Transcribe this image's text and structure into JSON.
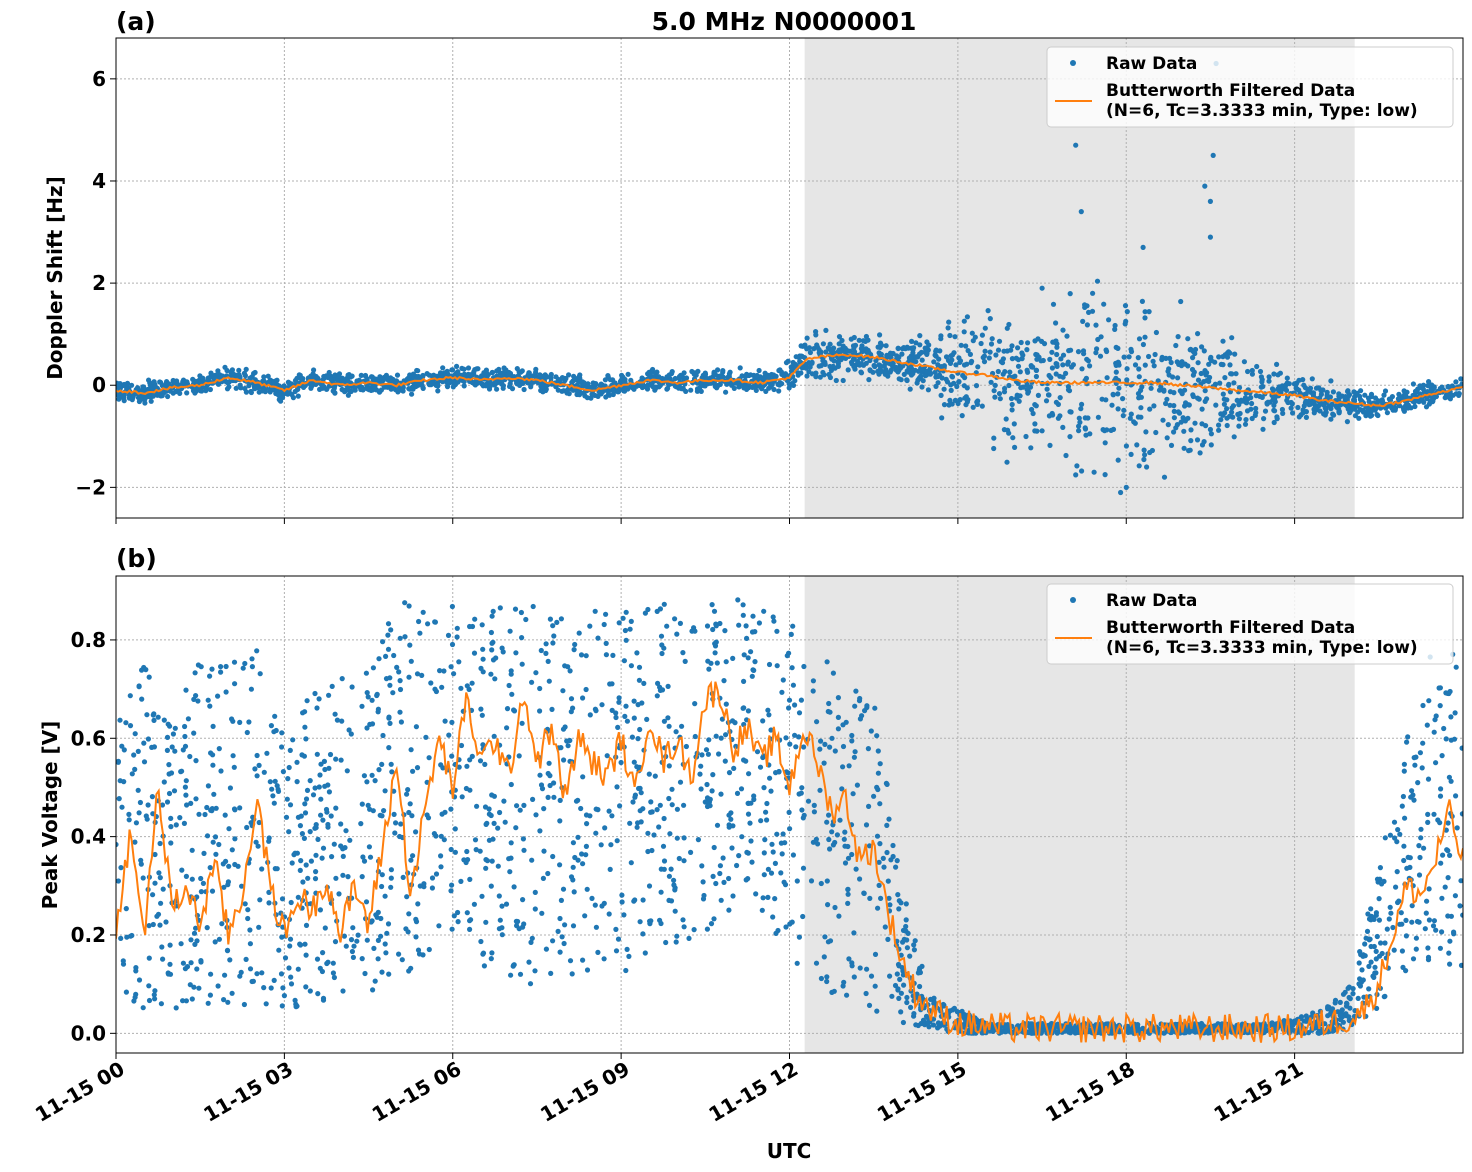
{
  "figure": {
    "title": "5.0 MHz N0000001",
    "xlabel": "UTC",
    "shade_color": "#e6e6e6",
    "raw_color": "#1f77b4",
    "filtered_color": "#ff7f0e",
    "grid_color": "#b0b0b0"
  },
  "chart_data": [
    {
      "type": "scatter",
      "panel_label": "(a)",
      "title": "5.0 MHz N0000001",
      "xlabel": "",
      "ylabel": "Doppler Shift [Hz]",
      "xlim_hours": [
        0,
        24
      ],
      "ylim": [
        -2.6,
        6.8
      ],
      "yticks": [
        -2,
        0,
        2,
        4,
        6
      ],
      "ytick_labels": [
        "−2",
        "0",
        "2",
        "4",
        "6"
      ],
      "xticks_hours": [
        0,
        3,
        6,
        9,
        12,
        15,
        18,
        21
      ],
      "grid": true,
      "legend_position": "top-right",
      "shaded_interval_hours": [
        12.27,
        22.07
      ],
      "series": [
        {
          "name": "Raw Data",
          "kind": "points",
          "x_hours": [
            0.0,
            0.5,
            1.0,
            1.5,
            2.0,
            2.5,
            3.0,
            3.5,
            4.0,
            4.5,
            5.0,
            5.5,
            6.0,
            6.5,
            7.0,
            7.5,
            8.0,
            8.5,
            9.0,
            9.5,
            10.0,
            10.5,
            11.0,
            11.5,
            12.0,
            12.3,
            12.5,
            13.0,
            13.5,
            14.0,
            14.5,
            15.0,
            15.5,
            16.0,
            16.5,
            17.0,
            17.5,
            18.0,
            18.5,
            19.0,
            19.5,
            20.0,
            20.5,
            21.0,
            21.5,
            22.0,
            22.5,
            23.0,
            23.5,
            24.0
          ],
          "y_center": [
            -0.1,
            -0.15,
            -0.05,
            0.0,
            0.15,
            0.05,
            -0.1,
            0.1,
            0.0,
            0.05,
            0.0,
            0.1,
            0.15,
            0.1,
            0.15,
            0.1,
            0.0,
            -0.1,
            0.0,
            0.1,
            0.05,
            0.1,
            0.1,
            0.05,
            0.15,
            0.5,
            0.55,
            0.6,
            0.55,
            0.45,
            0.35,
            0.25,
            0.2,
            0.1,
            0.05,
            0.05,
            0.05,
            0.05,
            0.05,
            0.0,
            -0.05,
            -0.1,
            -0.15,
            -0.2,
            -0.3,
            -0.35,
            -0.4,
            -0.3,
            -0.15,
            -0.05
          ],
          "y_spread": [
            0.15,
            0.15,
            0.15,
            0.15,
            0.15,
            0.15,
            0.15,
            0.15,
            0.15,
            0.15,
            0.15,
            0.15,
            0.15,
            0.15,
            0.15,
            0.15,
            0.15,
            0.15,
            0.15,
            0.15,
            0.15,
            0.15,
            0.15,
            0.15,
            0.2,
            0.35,
            0.3,
            0.3,
            0.3,
            0.3,
            0.45,
            0.7,
            0.9,
            1.0,
            1.1,
            1.2,
            1.3,
            1.3,
            1.2,
            1.1,
            0.9,
            0.6,
            0.4,
            0.3,
            0.25,
            0.25,
            0.2,
            0.2,
            0.15,
            0.15
          ],
          "outliers": [
            [
              17.1,
              4.7
            ],
            [
              17.2,
              3.4
            ],
            [
              18.3,
              2.7
            ],
            [
              19.4,
              3.9
            ],
            [
              19.5,
              3.6
            ],
            [
              19.55,
              4.5
            ],
            [
              19.6,
              6.3
            ],
            [
              19.5,
              2.9
            ],
            [
              17.4,
              1.8
            ],
            [
              16.5,
              1.9
            ],
            [
              17.9,
              -2.1
            ],
            [
              18.0,
              -2.0
            ]
          ]
        },
        {
          "name": "Butterworth Filtered Data\n(N=6, Tc=3.3333 min, Type: low)",
          "kind": "line",
          "x_hours": [
            0.0,
            0.5,
            1.0,
            1.5,
            2.0,
            2.5,
            3.0,
            3.5,
            4.0,
            4.5,
            5.0,
            5.5,
            6.0,
            6.5,
            7.0,
            7.5,
            8.0,
            8.5,
            9.0,
            9.5,
            10.0,
            10.5,
            11.0,
            11.5,
            12.0,
            12.3,
            12.5,
            13.0,
            13.5,
            14.0,
            14.5,
            15.0,
            15.5,
            16.0,
            16.5,
            17.0,
            17.5,
            18.0,
            18.5,
            19.0,
            19.5,
            20.0,
            20.5,
            21.0,
            21.5,
            22.0,
            22.5,
            23.0,
            23.5,
            24.0
          ],
          "y": [
            -0.1,
            -0.15,
            -0.05,
            0.0,
            0.15,
            0.05,
            -0.1,
            0.1,
            0.0,
            0.05,
            0.0,
            0.1,
            0.15,
            0.1,
            0.15,
            0.1,
            0.0,
            -0.1,
            0.0,
            0.1,
            0.05,
            0.1,
            0.1,
            0.05,
            0.15,
            0.5,
            0.55,
            0.6,
            0.55,
            0.45,
            0.35,
            0.25,
            0.2,
            0.1,
            0.05,
            0.05,
            0.05,
            0.05,
            0.05,
            0.0,
            -0.05,
            -0.1,
            -0.15,
            -0.2,
            -0.3,
            -0.35,
            -0.4,
            -0.3,
            -0.15,
            -0.05
          ]
        }
      ]
    },
    {
      "type": "scatter",
      "panel_label": "(b)",
      "title": "",
      "xlabel": "UTC",
      "ylabel": "Peak Voltage [V]",
      "xlim_hours": [
        0,
        24
      ],
      "ylim": [
        -0.04,
        0.93
      ],
      "yticks": [
        0.0,
        0.2,
        0.4,
        0.6,
        0.8
      ],
      "ytick_labels": [
        "0.0",
        "0.2",
        "0.4",
        "0.6",
        "0.8"
      ],
      "xticks_hours": [
        0,
        3,
        6,
        9,
        12,
        15,
        18,
        21
      ],
      "xtick_labels": [
        "11-15 00",
        "11-15 03",
        "11-15 06",
        "11-15 09",
        "11-15 12",
        "11-15 15",
        "11-15 18",
        "11-15 21"
      ],
      "grid": true,
      "legend_position": "top-right",
      "shaded_interval_hours": [
        12.27,
        22.07
      ],
      "series": [
        {
          "name": "Raw Data",
          "kind": "points",
          "x_hours": [
            0.0,
            0.5,
            1.0,
            1.5,
            2.0,
            2.5,
            3.0,
            3.5,
            4.0,
            4.5,
            5.0,
            5.5,
            6.0,
            6.5,
            7.0,
            7.5,
            8.0,
            8.5,
            9.0,
            9.5,
            10.0,
            10.5,
            11.0,
            11.5,
            12.0,
            12.5,
            13.0,
            13.5,
            14.0,
            14.5,
            15.0,
            15.5,
            16.0,
            16.5,
            17.0,
            17.5,
            18.0,
            18.5,
            19.0,
            19.5,
            20.0,
            20.5,
            21.0,
            21.5,
            22.0,
            22.5,
            23.0,
            23.5,
            24.0
          ],
          "y_low": [
            0.06,
            0.05,
            0.05,
            0.06,
            0.06,
            0.05,
            0.05,
            0.06,
            0.06,
            0.08,
            0.1,
            0.15,
            0.18,
            0.12,
            0.1,
            0.1,
            0.1,
            0.12,
            0.12,
            0.12,
            0.15,
            0.2,
            0.25,
            0.25,
            0.15,
            0.08,
            0.06,
            0.04,
            0.02,
            0.01,
            0.0,
            0.0,
            0.0,
            0.0,
            0.0,
            0.0,
            0.0,
            0.0,
            0.0,
            0.0,
            0.0,
            0.0,
            0.0,
            0.0,
            0.01,
            0.05,
            0.12,
            0.15,
            0.12
          ],
          "y_high": [
            0.72,
            0.75,
            0.62,
            0.78,
            0.75,
            0.8,
            0.6,
            0.7,
            0.72,
            0.75,
            0.88,
            0.87,
            0.87,
            0.87,
            0.88,
            0.87,
            0.86,
            0.87,
            0.88,
            0.87,
            0.88,
            0.88,
            0.89,
            0.86,
            0.84,
            0.8,
            0.72,
            0.7,
            0.3,
            0.08,
            0.05,
            0.02,
            0.02,
            0.02,
            0.02,
            0.02,
            0.02,
            0.02,
            0.02,
            0.02,
            0.02,
            0.02,
            0.03,
            0.05,
            0.1,
            0.35,
            0.6,
            0.8,
            0.82
          ]
        },
        {
          "name": "Butterworth Filtered Data\n(N=6, Tc=3.3333 min, Type: low)",
          "kind": "line",
          "x_hours": [
            0.0,
            0.25,
            0.5,
            0.75,
            1.0,
            1.25,
            1.5,
            1.75,
            2.0,
            2.25,
            2.5,
            2.75,
            3.0,
            3.25,
            3.5,
            3.75,
            4.0,
            4.25,
            4.5,
            4.75,
            5.0,
            5.25,
            5.5,
            5.75,
            6.0,
            6.25,
            6.5,
            6.75,
            7.0,
            7.25,
            7.5,
            7.75,
            8.0,
            8.25,
            8.5,
            8.75,
            9.0,
            9.25,
            9.5,
            9.75,
            10.0,
            10.25,
            10.5,
            10.75,
            11.0,
            11.25,
            11.5,
            11.75,
            12.0,
            12.25,
            12.5,
            12.75,
            13.0,
            13.25,
            13.5,
            13.75,
            14.0,
            14.25,
            14.5,
            15.0,
            16.0,
            17.0,
            18.0,
            19.0,
            20.0,
            21.0,
            21.5,
            22.0,
            22.25,
            22.5,
            22.75,
            23.0,
            23.25,
            23.5,
            23.75,
            24.0
          ],
          "y": [
            0.22,
            0.4,
            0.2,
            0.5,
            0.25,
            0.3,
            0.22,
            0.35,
            0.2,
            0.28,
            0.48,
            0.3,
            0.2,
            0.28,
            0.25,
            0.32,
            0.2,
            0.3,
            0.22,
            0.38,
            0.55,
            0.28,
            0.45,
            0.6,
            0.5,
            0.68,
            0.55,
            0.6,
            0.52,
            0.7,
            0.55,
            0.62,
            0.48,
            0.6,
            0.55,
            0.52,
            0.6,
            0.48,
            0.65,
            0.55,
            0.6,
            0.52,
            0.68,
            0.7,
            0.58,
            0.62,
            0.55,
            0.6,
            0.5,
            0.62,
            0.55,
            0.45,
            0.48,
            0.35,
            0.38,
            0.25,
            0.15,
            0.08,
            0.05,
            0.02,
            0.01,
            0.01,
            0.01,
            0.01,
            0.01,
            0.01,
            0.02,
            0.03,
            0.05,
            0.1,
            0.2,
            0.3,
            0.28,
            0.35,
            0.45,
            0.35
          ]
        }
      ]
    }
  ]
}
